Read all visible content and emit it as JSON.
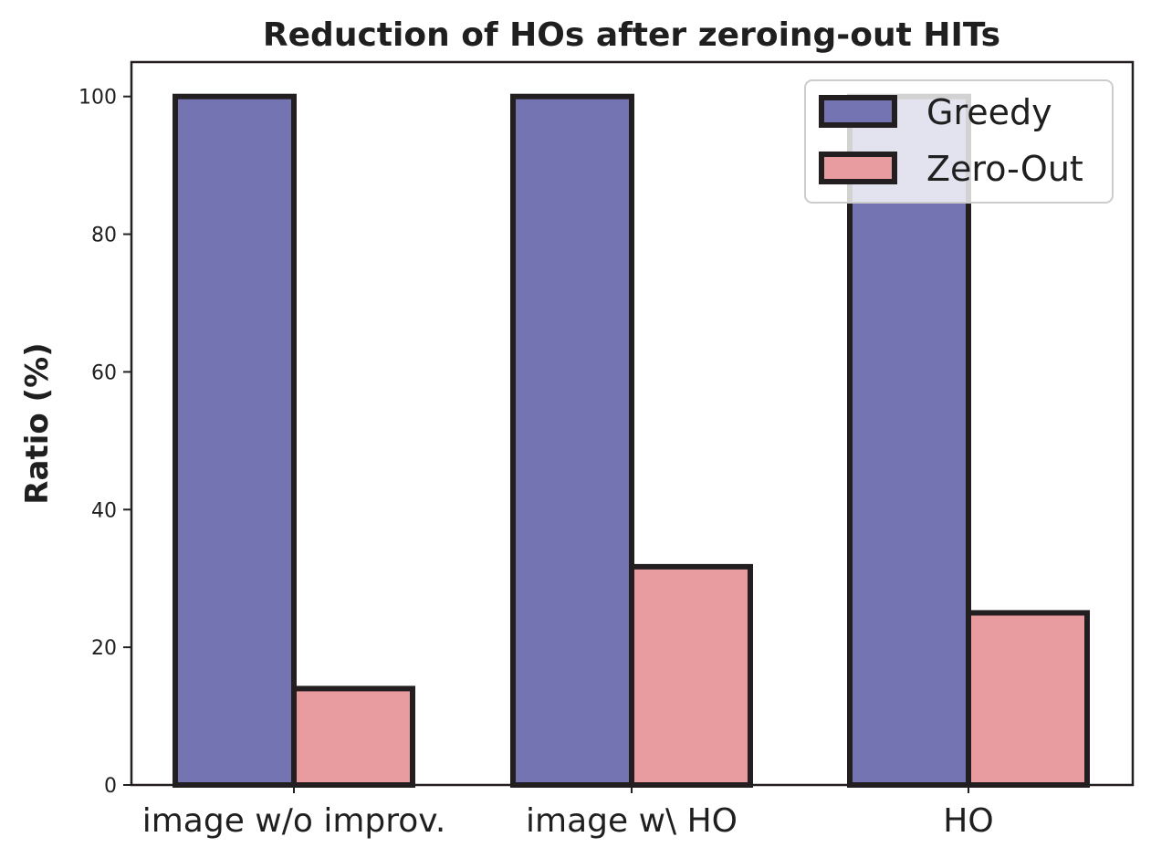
{
  "chart_data": {
    "type": "bar",
    "title": "Reduction of HOs after zeroing-out HITs",
    "xlabel": "",
    "ylabel": "Ratio (%)",
    "categories": [
      "image w/o improv.",
      "image w\\ HO",
      "HO"
    ],
    "series": [
      {
        "name": "Greedy",
        "values": [
          100,
          100,
          100
        ],
        "color": "#7574b3"
      },
      {
        "name": "Zero-Out",
        "values": [
          14,
          31.7,
          25
        ],
        "color": "#e89ca0"
      }
    ],
    "ylim": [
      0,
      105
    ],
    "yticks": [
      "0",
      "20",
      "40",
      "60",
      "80",
      "100"
    ],
    "grid": false,
    "legend_position": "top-right",
    "edge_color": "#231f20"
  }
}
